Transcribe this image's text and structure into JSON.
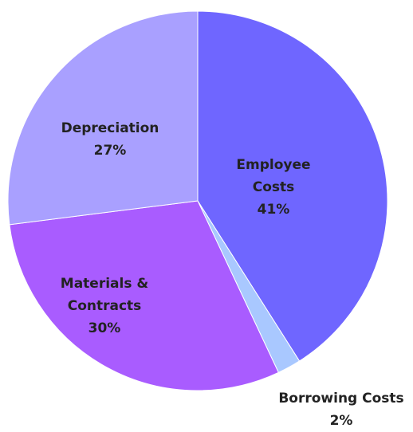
{
  "chart_data": {
    "type": "pie",
    "title": "",
    "slices": [
      {
        "label": "Employee Costs",
        "value": 41,
        "value_label": "41%",
        "color": "#6f66ff"
      },
      {
        "label": "Borrowing Costs",
        "value": 2,
        "value_label": "2%",
        "color": "#a9c8ff"
      },
      {
        "label": "Materials & Contracts",
        "value": 30,
        "value_label": "30%",
        "color": "#a95cff"
      },
      {
        "label": "Depreciation",
        "value": 27,
        "value_label": "27%",
        "color": "#a9a0ff"
      }
    ],
    "start_angle_deg": 0,
    "direction": "clockwise",
    "labels_inside": true,
    "legend": "none"
  }
}
